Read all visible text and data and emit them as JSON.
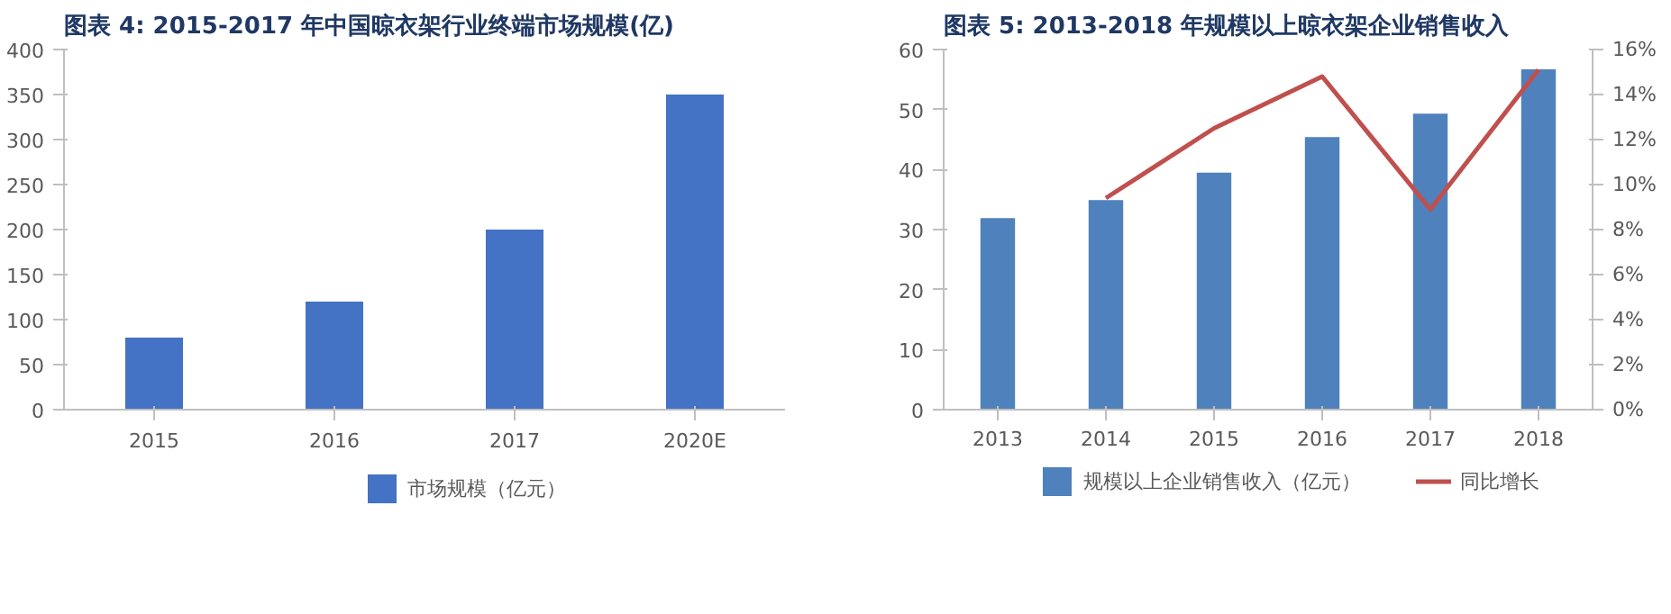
{
  "chart_data": [
    {
      "type": "bar",
      "title": "图表 4: 2015-2017 年中国晾衣架行业终端市场规模(亿)",
      "categories": [
        "2015",
        "2016",
        "2017",
        "2020E"
      ],
      "series": [
        {
          "name": "市场规模（亿元）",
          "color": "#4472c4",
          "values": [
            80,
            120,
            200,
            350
          ]
        }
      ],
      "ylim": [
        0,
        400
      ],
      "yticks": [
        0,
        50,
        100,
        150,
        200,
        250,
        300,
        350,
        400
      ],
      "grid": false,
      "legend": "bottom"
    },
    {
      "type": "bar",
      "title": "图表 5: 2013-2018 年规模以上晾衣架企业销售收入",
      "categories": [
        "2013",
        "2014",
        "2015",
        "2016",
        "2017",
        "2018"
      ],
      "series": [
        {
          "name": "规模以上企业销售收入（亿元）",
          "color": "#4f81bd",
          "values": [
            31.9,
            34.9,
            39.5,
            45.4,
            49.3,
            56.7
          ]
        },
        {
          "name": "同比增长",
          "type": "line",
          "axis": "y2",
          "color": "#c0504d",
          "values": [
            null,
            9.4,
            12.5,
            14.8,
            8.9,
            15.1
          ]
        }
      ],
      "ylim": [
        0,
        60
      ],
      "yticks": [
        0,
        10,
        20,
        30,
        40,
        50,
        60
      ],
      "y2lim": [
        0,
        16
      ],
      "y2ticks": [
        {
          "value": 0,
          "label": "0%"
        },
        {
          "value": 2,
          "label": "2%"
        },
        {
          "value": 4,
          "label": "4%"
        },
        {
          "value": 6,
          "label": "6%"
        },
        {
          "value": 8,
          "label": "8%"
        },
        {
          "value": 10,
          "label": "10%"
        },
        {
          "value": 12,
          "label": "12%"
        },
        {
          "value": 14,
          "label": "14%"
        },
        {
          "value": 16,
          "label": "16%"
        }
      ],
      "grid": false,
      "legend": "bottom"
    }
  ]
}
